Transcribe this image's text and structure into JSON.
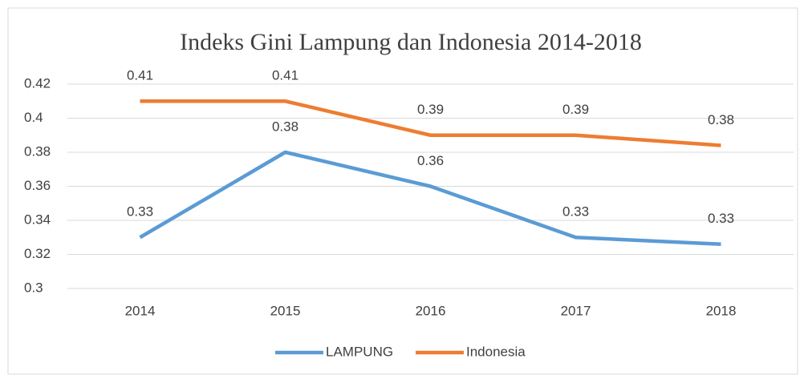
{
  "chart_data": {
    "type": "line",
    "title": "Indeks Gini Lampung dan Indonesia 2014-2018",
    "categories": [
      "2014",
      "2015",
      "2016",
      "2017",
      "2018"
    ],
    "series": [
      {
        "name": "LAMPUNG",
        "color": "#5b9bd5",
        "values": [
          0.33,
          0.38,
          0.36,
          0.33,
          0.326
        ],
        "value_labels": [
          "0.33",
          "0.38",
          "0.36",
          "0.33",
          "0.33"
        ]
      },
      {
        "name": "Indonesia",
        "color": "#ed7d31",
        "values": [
          0.41,
          0.41,
          0.39,
          0.39,
          0.384
        ],
        "value_labels": [
          "0.41",
          "0.41",
          "0.39",
          "0.39",
          "0.38"
        ]
      }
    ],
    "ylim": [
      0.3,
      0.42
    ],
    "yticks": [
      0.3,
      0.32,
      0.34,
      0.36,
      0.38,
      0.4,
      0.42
    ],
    "grid": true,
    "legend": "bottom"
  }
}
